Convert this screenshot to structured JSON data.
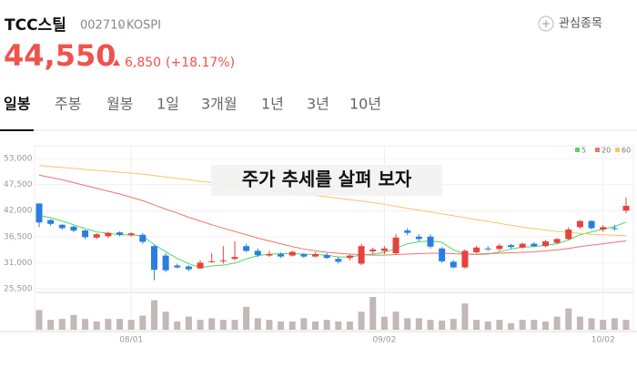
{
  "header": {
    "name": "TCC스틸",
    "code": "002710",
    "market": "KOSPI",
    "watch_button": "관심종목",
    "price": "44,550",
    "change": "6,850",
    "change_pct": "(+18.17%)"
  },
  "tabs": [
    "일봉",
    "주봉",
    "월봉",
    "1일",
    "3개월",
    "1년",
    "3년",
    "10년"
  ],
  "chart_data": {
    "type": "candlestick",
    "annotation": "주가 추세를 살펴 보자",
    "categories": [
      null,
      null,
      null,
      null,
      null,
      null,
      null,
      null,
      "08/01",
      null,
      null,
      null,
      null,
      null,
      null,
      null,
      null,
      null,
      null,
      null,
      null,
      null,
      null,
      null,
      null,
      null,
      null,
      null,
      null,
      null,
      "09/02",
      null,
      null,
      null,
      null,
      null,
      null,
      null,
      null,
      null,
      null,
      null,
      null,
      null,
      null,
      null,
      null,
      null,
      null,
      "10/02",
      null,
      null
    ],
    "open": [
      43500,
      40000,
      39000,
      38600,
      37800,
      36300,
      36600,
      37400,
      36800,
      36900,
      34500,
      32500,
      30400,
      30200,
      29800,
      31200,
      31300,
      31800,
      34500,
      33500,
      32500,
      32800,
      32500,
      32800,
      32300,
      32600,
      31800,
      32000,
      30800,
      33400,
      33500,
      33000,
      37800,
      36500,
      36500,
      34000,
      31200,
      30000,
      33200,
      34000,
      33900,
      34700,
      34200,
      35000,
      34500,
      35200,
      36000,
      38500,
      39800,
      38000,
      38300,
      42000
    ],
    "high": [
      43500,
      40200,
      39200,
      38800,
      38000,
      37200,
      37500,
      37600,
      37400,
      37200,
      34800,
      33000,
      30800,
      30500,
      31500,
      33000,
      34500,
      35500,
      35000,
      34000,
      33500,
      33200,
      33500,
      33000,
      33200,
      33000,
      32200,
      32800,
      35000,
      34200,
      34500,
      37000,
      38300,
      37000,
      37000,
      34300,
      31500,
      33800,
      34500,
      34500,
      35000,
      35000,
      35200,
      35300,
      35800,
      36200,
      38500,
      40000,
      40000,
      38900,
      39000,
      44800
    ],
    "low": [
      38500,
      38800,
      38000,
      37400,
      36000,
      36000,
      36200,
      36600,
      36500,
      35000,
      27300,
      29000,
      29800,
      29200,
      29700,
      31000,
      30800,
      31500,
      33200,
      32200,
      32200,
      32000,
      32300,
      32000,
      32100,
      31800,
      30800,
      31500,
      30500,
      32900,
      32800,
      32800,
      36800,
      35500,
      34000,
      31000,
      29800,
      29800,
      33000,
      33500,
      33500,
      34000,
      34000,
      34300,
      34300,
      35000,
      35800,
      38200,
      38000,
      37500,
      37800,
      41500
    ],
    "close": [
      39500,
      39200,
      38300,
      37800,
      36400,
      37000,
      37300,
      36900,
      37200,
      35400,
      29500,
      29400,
      30000,
      29600,
      31000,
      31300,
      31500,
      32200,
      33500,
      32600,
      32800,
      32300,
      33300,
      32300,
      32800,
      32000,
      31200,
      32500,
      34500,
      33800,
      34000,
      36300,
      37300,
      36000,
      34400,
      31300,
      30000,
      33500,
      34200,
      33900,
      34600,
      34300,
      35000,
      34500,
      35500,
      36000,
      38000,
      39800,
      38300,
      38500,
      38200,
      43000
    ],
    "volume": [
      60,
      30,
      33,
      45,
      33,
      25,
      33,
      33,
      30,
      43,
      90,
      55,
      25,
      40,
      30,
      35,
      30,
      30,
      70,
      35,
      30,
      25,
      25,
      35,
      25,
      30,
      25,
      25,
      55,
      100,
      40,
      55,
      35,
      35,
      30,
      28,
      33,
      80,
      30,
      25,
      30,
      20,
      30,
      30,
      25,
      40,
      65,
      40,
      35,
      30,
      35,
      30
    ],
    "up_color": "#e8413e",
    "down_color": "#2a7de1",
    "volume_color": "#c2b8b5",
    "series": [
      {
        "name": "5",
        "color": "#4cd964",
        "values": [
          41000,
          40500,
          39800,
          39000,
          38200,
          37500,
          37200,
          36900,
          36900,
          36600,
          34800,
          33300,
          31900,
          30800,
          30000,
          30300,
          30500,
          30900,
          31800,
          32500,
          32800,
          32900,
          32900,
          32800,
          32700,
          32600,
          32200,
          32200,
          32600,
          32800,
          33200,
          34000,
          35000,
          35400,
          35600,
          35300,
          33700,
          32800,
          32700,
          32800,
          33300,
          33900,
          34300,
          34400,
          34700,
          35000,
          35800,
          36900,
          37500,
          38100,
          38600,
          39600
        ]
      },
      {
        "name": "20",
        "color": "#f0736d",
        "values": [
          49500,
          49000,
          48500,
          47900,
          47300,
          46700,
          46100,
          45500,
          44800,
          44100,
          43200,
          42300,
          41500,
          40600,
          39800,
          39000,
          38300,
          37600,
          36900,
          36200,
          35600,
          35000,
          34400,
          33900,
          33500,
          33200,
          33000,
          32800,
          32700,
          32600,
          32600,
          32700,
          32800,
          32900,
          33000,
          33000,
          32900,
          32800,
          32800,
          32900,
          33000,
          33100,
          33200,
          33300,
          33500,
          33700,
          34000,
          34400,
          34700,
          35000,
          35300,
          35600
        ]
      },
      {
        "name": "60",
        "color": "#f7c46b",
        "values": [
          51500,
          51300,
          51100,
          50900,
          50700,
          50500,
          50300,
          50100,
          49900,
          49700,
          49400,
          49100,
          48800,
          48500,
          48200,
          47900,
          47600,
          47300,
          47000,
          46700,
          46400,
          46100,
          45800,
          45500,
          45200,
          44900,
          44600,
          44300,
          44000,
          43700,
          43300,
          42900,
          42500,
          42100,
          41700,
          41300,
          40900,
          40500,
          40100,
          39700,
          39300,
          38900,
          38500,
          38200,
          37900,
          37600,
          37400,
          37200,
          37000,
          36900,
          36800,
          36700
        ]
      }
    ],
    "ylim": [
      25500,
      53000
    ],
    "yticks": [
      {
        "value": 25500,
        "label": "25,500"
      },
      {
        "value": 31000,
        "label": "31,000"
      },
      {
        "value": 36500,
        "label": "36,500"
      },
      {
        "value": 42000,
        "label": "42,000"
      },
      {
        "value": 47500,
        "label": "47,500"
      },
      {
        "value": 53000,
        "label": "53,000"
      }
    ],
    "grid": true,
    "legend": "top-right"
  }
}
